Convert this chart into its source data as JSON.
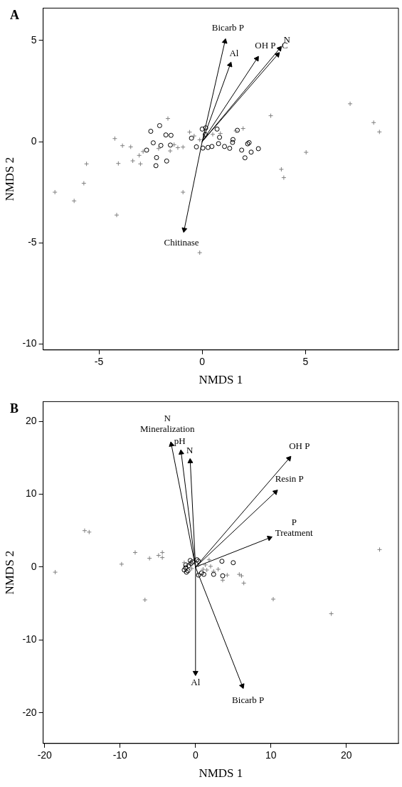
{
  "chart_data": [
    {
      "type": "scatter",
      "title": "A",
      "xlabel": "NMDS 1",
      "ylabel": "NMDS 2",
      "xlim": [
        -7.7,
        9.5
      ],
      "xticks": [
        -5,
        0,
        5
      ],
      "ylim": [
        -10.3,
        6.6
      ],
      "yticks": [
        -10,
        -5,
        0,
        5
      ],
      "grid": false,
      "series": [
        {
          "marker": "cross",
          "color": "#808080",
          "x": [
            -4.23,
            -3.86,
            -3.46,
            -5.6,
            -4.06,
            -3.36,
            -2.99,
            -3.05,
            -2.86,
            -1.66,
            -5.73,
            -7.13,
            -6.2,
            -4.14,
            -0.93,
            -0.12,
            3.32,
            7.16,
            8.3,
            8.58,
            5.03,
            3.83,
            3.95,
            1.98,
            0.88,
            -0.61,
            -0.93,
            -1.36,
            -1.18,
            -1.55,
            -2.11,
            -0.39,
            -0.12,
            0.51,
            1.63
          ],
          "values": [
            0.15,
            -0.2,
            -0.26,
            -1.1,
            -1.08,
            -0.95,
            -1.1,
            -0.68,
            -0.49,
            1.14,
            -2.06,
            -2.5,
            -2.93,
            -3.63,
            -2.5,
            -5.49,
            1.28,
            1.87,
            0.94,
            0.48,
            -0.53,
            -1.37,
            -1.78,
            0.65,
            0.4,
            0.47,
            -0.27,
            -0.15,
            -0.3,
            -0.46,
            -0.34,
            0.28,
            0.09,
            0.36,
            0.53
          ]
        },
        {
          "marker": "circle",
          "color": "#000000",
          "x": [
            -2.49,
            -2.06,
            -1.76,
            -1.51,
            -2.37,
            -2.0,
            -1.54,
            -2.69,
            -2.21,
            -2.24,
            -1.72,
            -0.52,
            0.0,
            0.17,
            0.15,
            -0.28,
            0.03,
            0.28,
            0.47,
            0.72,
            0.84,
            0.79,
            1.08,
            1.33,
            1.49,
            1.47,
            1.7,
            1.91,
            2.07,
            2.2,
            2.27,
            2.37,
            2.72
          ],
          "values": [
            0.51,
            0.79,
            0.33,
            0.31,
            -0.06,
            -0.19,
            -0.17,
            -0.42,
            -0.79,
            -1.19,
            -0.96,
            0.17,
            0.62,
            0.68,
            0.35,
            -0.26,
            -0.32,
            -0.29,
            -0.24,
            0.62,
            0.21,
            -0.1,
            -0.24,
            -0.33,
            0.1,
            -0.04,
            0.56,
            -0.42,
            -0.8,
            -0.11,
            -0.05,
            -0.52,
            -0.35
          ]
        },
        {
          "marker": "triangle",
          "color": "#000000",
          "x": [
            1.1,
            1.35,
            2.65,
            3.75,
            3.65,
            -0.87
          ],
          "values": [
            4.95,
            3.8,
            4.1,
            4.6,
            4.3,
            -4.35
          ]
        }
      ],
      "annotations": [
        {
          "text": "Bicarb P",
          "x": 1.1,
          "y": 4.95
        },
        {
          "text": "Al",
          "x": 1.35,
          "y": 3.8
        },
        {
          "text": "OH P",
          "x": 2.65,
          "y": 4.1
        },
        {
          "text": "N",
          "x": 3.75,
          "y": 4.6
        },
        {
          "text": "C",
          "x": 3.65,
          "y": 4.3
        },
        {
          "text": "Chitinase",
          "x": -0.87,
          "y": -4.35
        }
      ]
    },
    {
      "type": "scatter",
      "title": "B",
      "xlabel": "NMDS 1",
      "ylabel": "NMDS 2",
      "xlim": [
        -20.2,
        26.9
      ],
      "xticks": [
        -20,
        -10,
        0,
        10,
        20
      ],
      "ylim": [
        -24.2,
        22.7
      ],
      "yticks": [
        -20,
        -10,
        0,
        10,
        20
      ],
      "grid": false,
      "series": [
        {
          "marker": "cross",
          "color": "#808080",
          "x": [
            -18.6,
            -14.7,
            -14.1,
            -9.8,
            -8.0,
            -6.1,
            -4.9,
            -4.4,
            -4.4,
            24.4,
            1.8,
            5.8,
            6.4,
            4.2,
            3.6,
            3.0,
            2.4,
            1.3,
            1.0,
            -6.7,
            10.3,
            18.0,
            6.1,
            -0.5,
            0.4,
            1.5,
            2.0,
            -1.5
          ],
          "values": [
            -0.7,
            5.0,
            4.8,
            0.4,
            2.0,
            1.2,
            1.6,
            2.0,
            1.3,
            2.4,
            1.0,
            -1.0,
            -2.2,
            -1.1,
            -1.8,
            -0.3,
            -0.6,
            0.3,
            -0.3,
            -4.5,
            -4.4,
            -6.4,
            -1.2,
            -0.2,
            0.3,
            -0.4,
            0.1,
            0.6
          ]
        },
        {
          "marker": "circle",
          "color": "#000000",
          "x": [
            3.5,
            5.0,
            2.4,
            3.6,
            0.8,
            0.2,
            -1.3,
            -1.5,
            -0.7,
            1.1,
            0.4,
            -1.2,
            -1.3,
            -0.4,
            0.4,
            -0.9,
            -1.0,
            -0.6
          ],
          "values": [
            0.8,
            0.6,
            -1.0,
            -1.2,
            -0.8,
            1.0,
            0.3,
            -0.4,
            0.9,
            -1.0,
            -1.1,
            -0.7,
            -0.1,
            0.7,
            0.8,
            0.2,
            -0.5,
            0.5
          ]
        },
        {
          "marker": "triangle",
          "color": "#000000",
          "x": [
            -3.2,
            -1.9,
            -0.7,
            12.4,
            10.6,
            9.8,
            0.0,
            6.2
          ],
          "values": [
            16.8,
            15.7,
            14.5,
            14.9,
            10.3,
            4.0,
            -14.5,
            -16.3
          ]
        }
      ],
      "annotations": [
        {
          "text": "N\nMineralization",
          "x": -3.2,
          "y": 16.8
        },
        {
          "text": "pH",
          "x": -1.9,
          "y": 15.7
        },
        {
          "text": "N",
          "x": -0.7,
          "y": 14.5
        },
        {
          "text": "OH P",
          "x": 12.4,
          "y": 14.9
        },
        {
          "text": "Resin P",
          "x": 10.6,
          "y": 10.3
        },
        {
          "text": "P\nTreatment",
          "x": 9.8,
          "y": 4.0
        },
        {
          "text": "Al",
          "x": 0.0,
          "y": -14.5
        },
        {
          "text": "Bicarb P",
          "x": 6.2,
          "y": -16.3
        }
      ]
    }
  ]
}
